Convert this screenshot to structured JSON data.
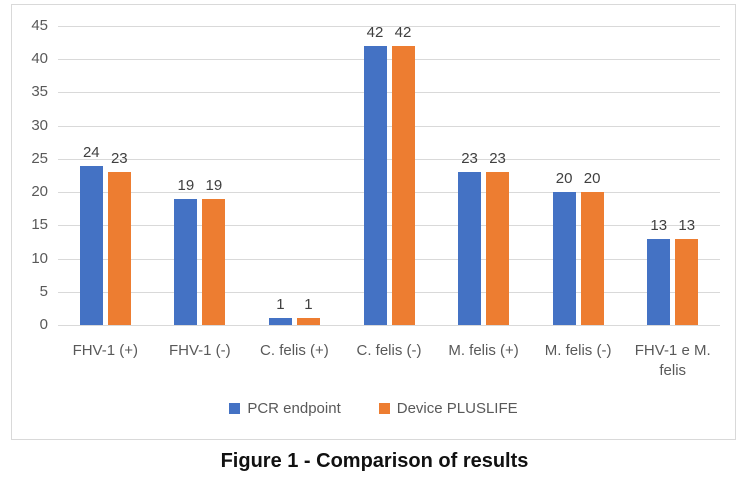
{
  "chart_data": {
    "type": "bar",
    "categories": [
      "FHV-1 (+)",
      "FHV-1 (-)",
      "C. felis (+)",
      "C. felis (-)",
      "M. felis (+)",
      "M. felis (-)",
      "FHV-1 e M. felis"
    ],
    "series": [
      {
        "name": "PCR endpoint",
        "color": "#4472C4",
        "values": [
          24,
          19,
          1,
          42,
          23,
          20,
          13
        ]
      },
      {
        "name": "Device PLUSLIFE",
        "color": "#ED7D31",
        "values": [
          23,
          19,
          1,
          42,
          23,
          20,
          13
        ]
      }
    ],
    "ylim": [
      0,
      45
    ],
    "yticks": [
      0,
      5,
      10,
      15,
      20,
      25,
      30,
      35,
      40,
      45
    ],
    "grid": true,
    "data_labels": true,
    "legend_position": "bottom",
    "title": "",
    "xlabel": "",
    "ylabel": ""
  },
  "caption": "Figure 1 - Comparison of results",
  "colors": {
    "series_blue": "#4472C4",
    "series_orange": "#ED7D31",
    "gridline": "#d9d9d9",
    "frame_border": "#d9d9d9",
    "axis_text": "#595959",
    "data_label_text": "#404040",
    "caption_text": "#111111"
  }
}
